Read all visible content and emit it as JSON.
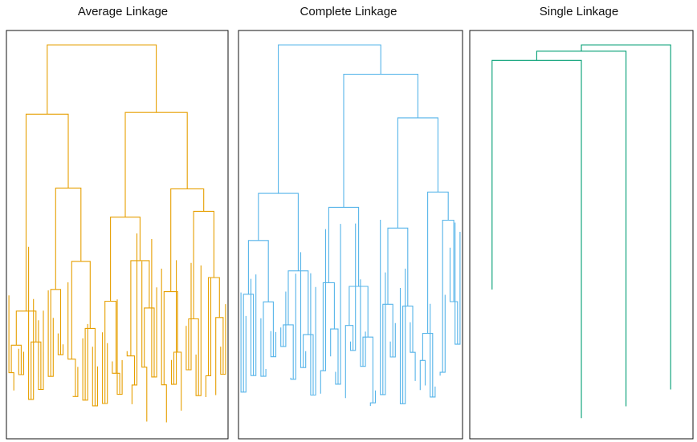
{
  "chart_data": [
    {
      "type": "dendrogram",
      "title": "Average Linkage",
      "color": "#E69F00",
      "xlabel": "",
      "ylabel": "",
      "axes": false,
      "leaf_count": 45
    },
    {
      "type": "dendrogram",
      "title": "Complete Linkage",
      "color": "#56B4E9",
      "xlabel": "",
      "ylabel": "",
      "axes": false,
      "leaf_count": 45
    },
    {
      "type": "dendrogram",
      "title": "Single Linkage",
      "color": "#009E73",
      "xlabel": "",
      "ylabel": "",
      "axes": false,
      "leaf_count": 45
    }
  ]
}
